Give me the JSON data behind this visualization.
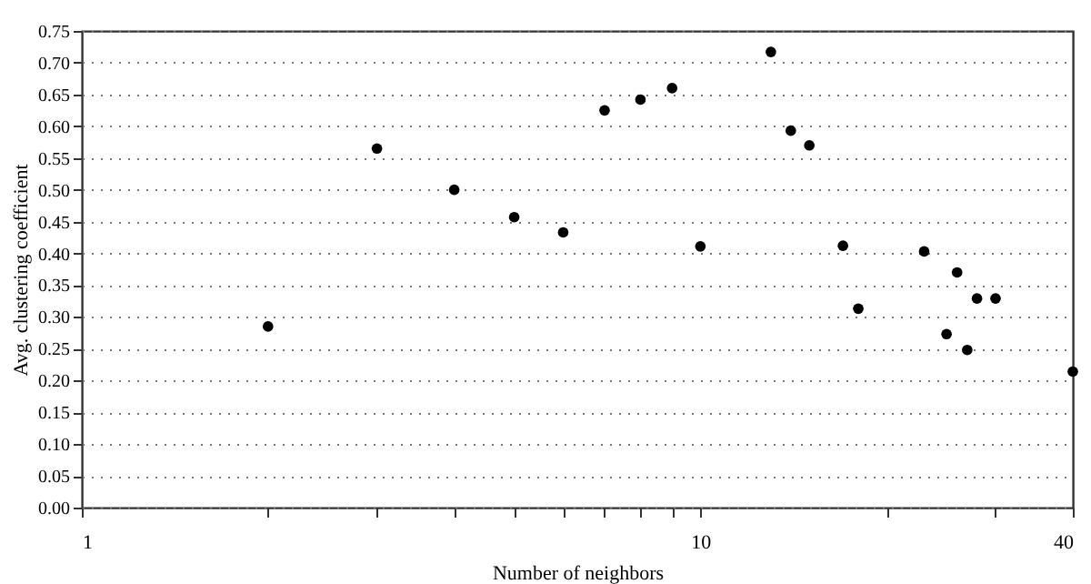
{
  "chart_data": {
    "type": "scatter",
    "xlabel": "Number of neighbors",
    "ylabel": "Avg. clustering coefficient",
    "x": [
      2,
      3,
      4,
      5,
      6,
      7,
      8,
      9,
      10,
      13,
      14,
      15,
      17,
      18,
      23,
      25,
      26,
      27,
      28,
      30,
      40
    ],
    "series": [
      {
        "color": "#000000",
        "values": [
          0.285,
          0.565,
          0.5,
          0.457,
          0.433,
          0.625,
          0.642,
          0.66,
          0.411,
          0.717,
          0.593,
          0.57,
          0.412,
          0.313,
          0.403,
          0.273,
          0.37,
          0.248,
          0.329,
          0.329,
          0.214
        ]
      }
    ],
    "log": "x",
    "xlim": [
      1,
      40
    ],
    "xticks": [
      1,
      {
        "value": 2,
        "label": null
      },
      {
        "value": 3,
        "label": null
      },
      {
        "value": 4,
        "label": null
      },
      {
        "value": 5,
        "label": null
      },
      {
        "value": 6,
        "label": null
      },
      {
        "value": 7,
        "label": null
      },
      {
        "value": 8,
        "label": null
      },
      {
        "value": 9,
        "label": null
      },
      10,
      {
        "value": 20,
        "label": null
      },
      {
        "value": 30,
        "label": null
      },
      40
    ],
    "ylim": [
      0,
      0.75
    ],
    "yticks": [
      {
        "value": 0,
        "label": "0.00"
      },
      {
        "value": 0.05,
        "label": "0.05"
      },
      {
        "value": 0.1,
        "label": "0.10"
      },
      {
        "value": 0.15,
        "label": "0.15"
      },
      {
        "value": 0.2,
        "label": "0.20"
      },
      {
        "value": 0.25,
        "label": "0.25"
      },
      {
        "value": 0.3,
        "label": "0.30"
      },
      {
        "value": 0.35,
        "label": "0.35"
      },
      {
        "value": 0.4,
        "label": "0.40"
      },
      {
        "value": 0.45,
        "label": "0.45"
      },
      {
        "value": 0.5,
        "label": "0.50"
      },
      {
        "value": 0.55,
        "label": "0.55"
      },
      {
        "value": 0.6,
        "label": "0.60"
      },
      {
        "value": 0.65,
        "label": "0.65"
      },
      {
        "value": 0.7,
        "label": "0.70"
      },
      {
        "value": 0.75,
        "label": "0.75"
      }
    ],
    "grid": "y",
    "marker": "circle"
  }
}
